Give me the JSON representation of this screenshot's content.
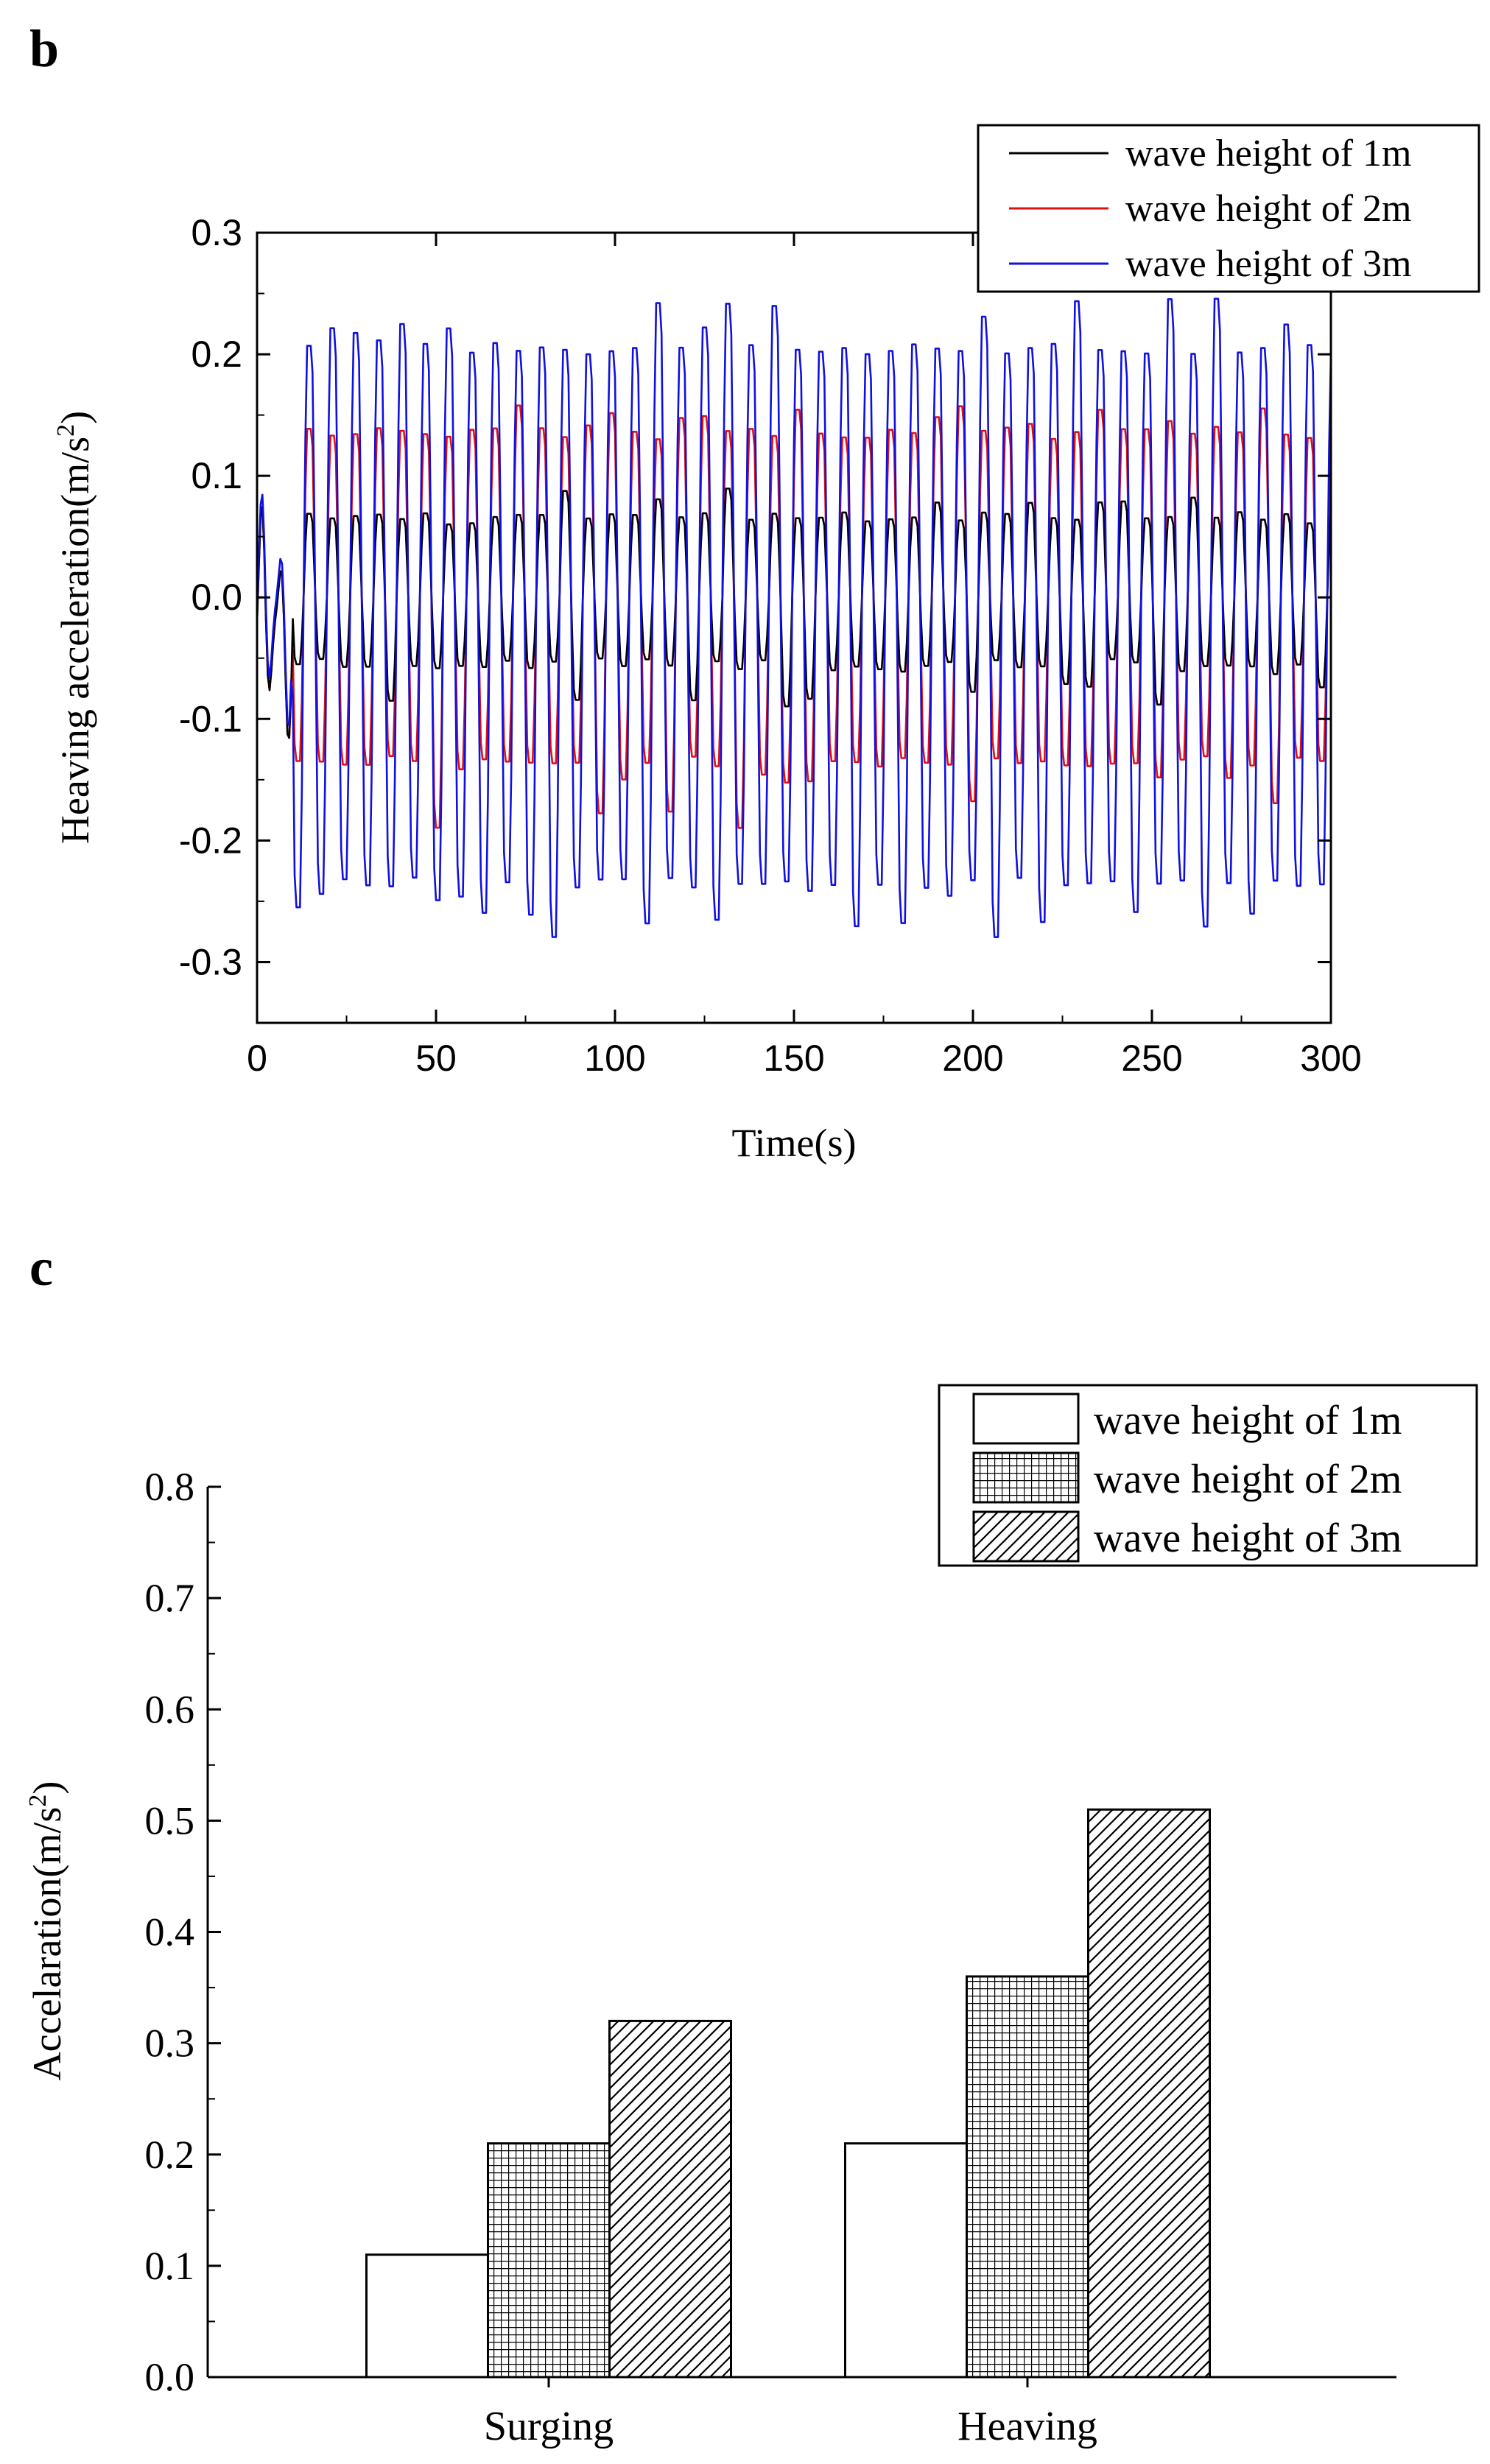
{
  "chart_data": [
    {
      "type": "line",
      "panel_label": "b",
      "title": "",
      "xlabel": "Time(s)",
      "ylabel_prefix": "Heaving acceleration(m/s",
      "ylabel_sup": "2",
      "ylabel_suffix": ")",
      "xlim": [
        0,
        300
      ],
      "ylim": [
        -0.35,
        0.3
      ],
      "x_ticks": [
        0,
        50,
        100,
        150,
        200,
        250,
        300
      ],
      "y_ticks": [
        0.3,
        0.2,
        0.1,
        0.0,
        -0.1,
        -0.2,
        -0.3
      ],
      "y_tick_labels": [
        "0.3",
        "0.2",
        "0.1",
        "0.0",
        "-0.1",
        "-0.2",
        "-0.3"
      ],
      "period_s": 6.5,
      "series": [
        {
          "name": "wave height of 1m",
          "color": "#000000",
          "amp_pos": 0.07,
          "amp_neg": -0.06,
          "peak_max": 0.09,
          "trough_min": -0.09
        },
        {
          "name": "wave height of 2m",
          "color": "#e01010",
          "amp_pos": 0.14,
          "amp_neg": -0.14,
          "peak_max": 0.16,
          "trough_min": -0.19
        },
        {
          "name": "wave height of 3m",
          "color": "#1010e0",
          "amp_pos": 0.21,
          "amp_neg": -0.24,
          "peak_max": 0.25,
          "trough_min": -0.29
        }
      ],
      "legend_placement": "top-right"
    },
    {
      "type": "bar",
      "panel_label": "c",
      "title": "",
      "xlabel": "",
      "ylabel_prefix": "Accelaration(m/s",
      "ylabel_sup": "2",
      "ylabel_suffix": ")",
      "categories": [
        "Surging",
        "Heaving"
      ],
      "ylim": [
        0,
        0.8
      ],
      "y_ticks": [
        0.0,
        0.1,
        0.2,
        0.3,
        0.4,
        0.5,
        0.6,
        0.7,
        0.8
      ],
      "y_tick_labels": [
        "0.0",
        "0.1",
        "0.2",
        "0.3",
        "0.4",
        "0.5",
        "0.6",
        "0.7",
        "0.8"
      ],
      "series": [
        {
          "name": "wave height of 1m",
          "pattern": "empty",
          "values": [
            0.11,
            0.21
          ]
        },
        {
          "name": "wave height of 2m",
          "pattern": "grid",
          "values": [
            0.21,
            0.36
          ]
        },
        {
          "name": "wave height of 3m",
          "pattern": "hatch",
          "values": [
            0.32,
            0.51
          ]
        }
      ],
      "legend_placement": "top-right"
    }
  ]
}
